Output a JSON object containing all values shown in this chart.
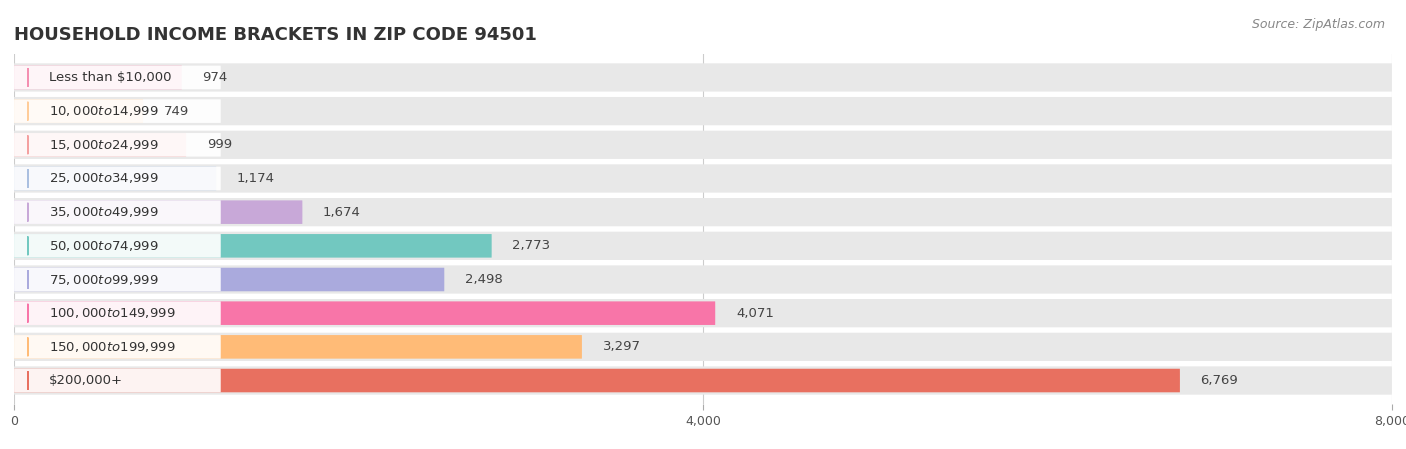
{
  "title": "HOUSEHOLD INCOME BRACKETS IN ZIP CODE 94501",
  "source": "Source: ZipAtlas.com",
  "categories": [
    "Less than $10,000",
    "$10,000 to $14,999",
    "$15,000 to $24,999",
    "$25,000 to $34,999",
    "$35,000 to $49,999",
    "$50,000 to $74,999",
    "$75,000 to $99,999",
    "$100,000 to $149,999",
    "$150,000 to $199,999",
    "$200,000+"
  ],
  "values": [
    974,
    749,
    999,
    1174,
    1674,
    2773,
    2498,
    4071,
    3297,
    6769
  ],
  "bar_colors": [
    "#F48FB1",
    "#FFCC99",
    "#F4A0A0",
    "#AABFE0",
    "#C8A8D8",
    "#72C8C0",
    "#AAAADD",
    "#F875A8",
    "#FFBB77",
    "#E87060"
  ],
  "bar_bg_color": "#e8e8e8",
  "xlim": [
    0,
    8000
  ],
  "xticks": [
    0,
    4000,
    8000
  ],
  "title_fontsize": 13,
  "label_fontsize": 9.5,
  "value_fontsize": 9.5,
  "source_fontsize": 9
}
